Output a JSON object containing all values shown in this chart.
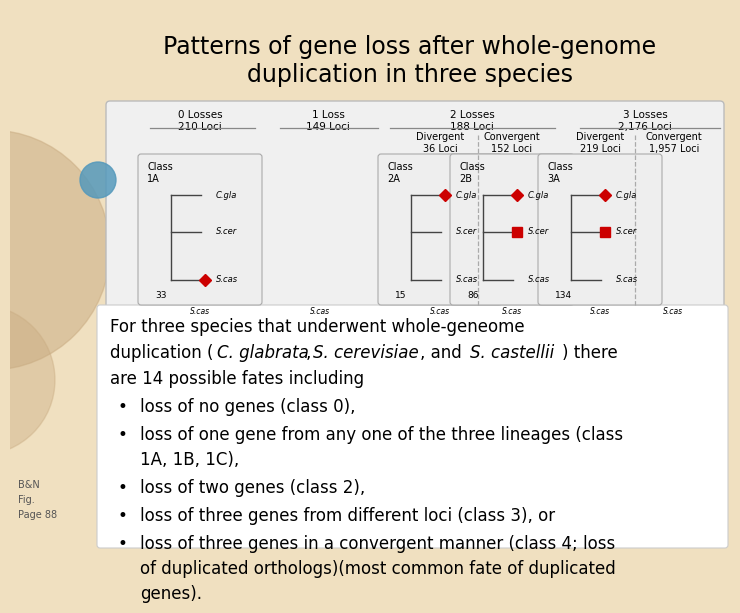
{
  "title": "Patterns of gene loss after whole-genome\nduplication in three species",
  "title_fontsize": 17,
  "bg_color": "#e8d5b0",
  "white_box_color": "#ffffff",
  "text_color": "#000000",
  "bullet_points": [
    "loss of no genes (class 0),",
    "loss of one gene from any one of the three lineages (class\n   1A, 1B, 1C),",
    "loss of two genes (class 2),",
    "loss of three genes from different loci (class 3), or",
    "loss of three genes in a convergent manner (class 4; loss\n   of duplicated orthologs)(most common fate of duplicated\n   genes)."
  ],
  "losses_labels": [
    "0 Losses\n210 Loci",
    "1 Loss\n149 Loci",
    "2 Losses\n188 Loci",
    "3 Losses\n2,176 Loci"
  ],
  "sub_labels": [
    "Divergent\n36 Loci",
    "Convergent\n152 Loci",
    "Divergent\n219 Loci",
    "Convergent\n1,957 Loci"
  ],
  "class_labels": [
    "Class\n1A",
    "Class\n2A",
    "Class\n2B",
    "Class\n3A"
  ],
  "num_labels": [
    "33",
    "15",
    "86",
    "134"
  ],
  "species": [
    "C.gla",
    "S.cer",
    "S.cas"
  ],
  "red_color": "#cc0000",
  "circle_color": "#5599bb",
  "tan_color": "#c8aa80",
  "slide_bg": "#f0e0c0"
}
